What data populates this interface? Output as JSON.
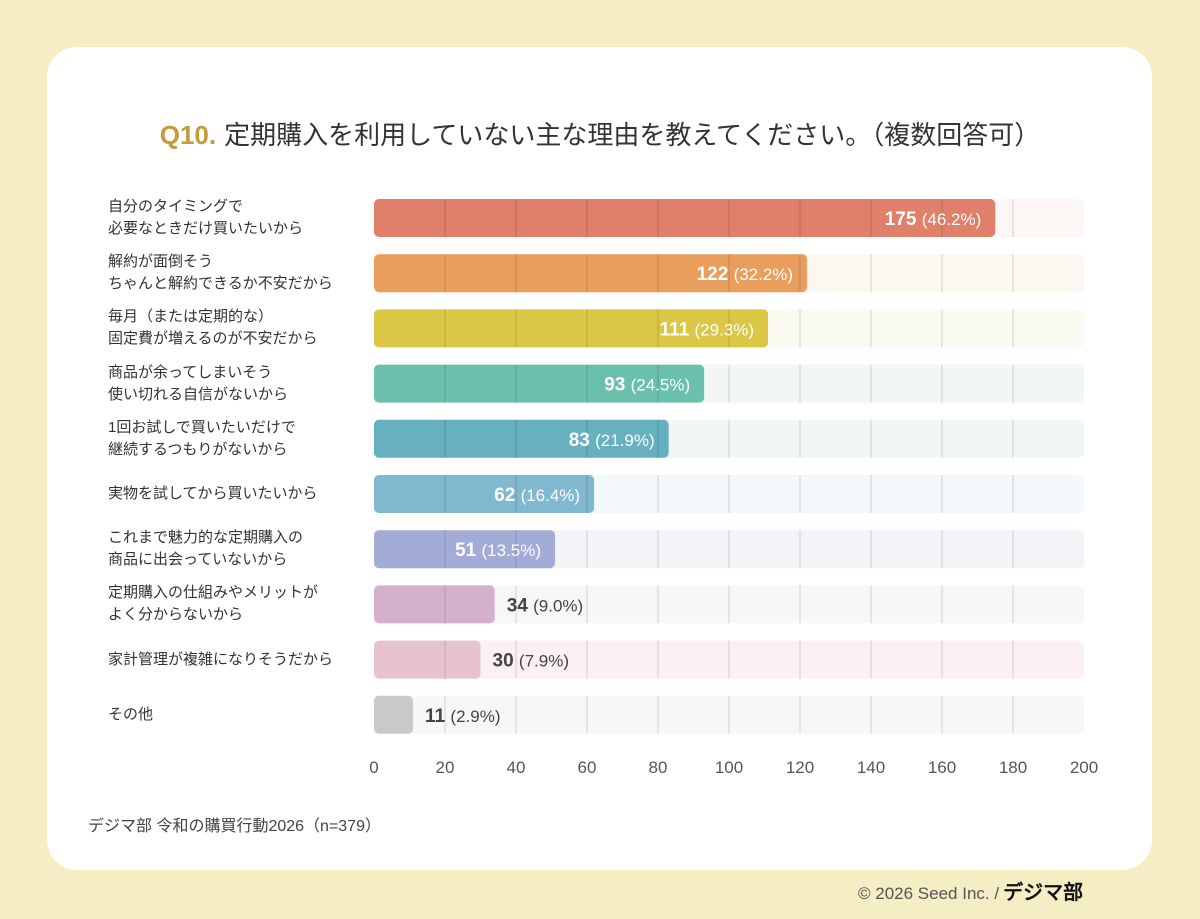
{
  "title": {
    "q": "Q10.",
    "text": "定期購入を利用していない主な理由を教えてください。（複数回答可）"
  },
  "source": "デジマ部 令和の購買行動2026（n=379）",
  "copyright": "© 2026 Seed Inc. /",
  "logo_text": "デジマ部",
  "colors": {
    "accent": "#c49a3a",
    "background": "#f5edc4"
  },
  "chart_data": {
    "type": "bar",
    "orientation": "horizontal",
    "categories": [
      "自分のタイミングで\n必要なときだけ買いたいから",
      "解約が面倒そう\nちゃんと解約できるか不安だから",
      "毎月（または定期的な）\n固定費が増えるのが不安だから",
      "商品が余ってしまいそう\n使い切れる自信がないから",
      "1回お試しで買いたいだけで\n継続するつもりがないから",
      "実物を試してから買いたいから",
      "これまで魅力的な定期購入の\n商品に出会っていないから",
      "定期購入の仕組みやメリットが\nよく分からないから",
      "家計管理が複雑になりそうだから",
      "その他"
    ],
    "values": [
      175,
      122,
      111,
      93,
      83,
      62,
      51,
      34,
      30,
      11
    ],
    "percent_labels": [
      "(46.2%)",
      "(32.2%)",
      "(29.3%)",
      "(24.5%)",
      "(21.9%)",
      "(16.4%)",
      "(13.5%)",
      "(9.0%)",
      "(7.9%)",
      "(2.9%)"
    ],
    "bar_colors": [
      "#e07f6a",
      "#e99e5e",
      "#dbc646",
      "#6bc0ac",
      "#66b0c0",
      "#7fb8cf",
      "#a3acd6",
      "#d4b0cc",
      "#e6c3cf",
      "#c9c9c9"
    ],
    "track_colors": [
      "#fcf6f4",
      "#fdf7f2",
      "#fbfaf0",
      "#f2f7f6",
      "#f1f6f7",
      "#f3f8fa",
      "#f3f4f8",
      "#f9f6f9",
      "#fbf0f3",
      "#f7f7f7"
    ],
    "xlim": [
      0,
      200
    ],
    "xticks": [
      0,
      20,
      40,
      60,
      80,
      100,
      120,
      140,
      160,
      180,
      200
    ],
    "grid": true
  }
}
